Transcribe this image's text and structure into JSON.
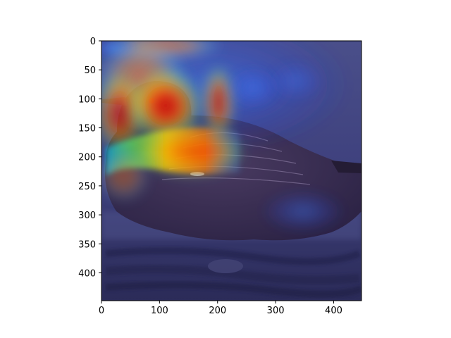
{
  "chart_data": {
    "type": "heatmap",
    "title": "",
    "xlabel": "",
    "ylabel": "",
    "xlim": [
      0,
      448
    ],
    "ylim": [
      448,
      0
    ],
    "grid": false,
    "xticks": [
      0,
      100,
      200,
      300,
      400
    ],
    "yticks": [
      0,
      50,
      100,
      150,
      200,
      250,
      300,
      350,
      400
    ],
    "colormap": "jet",
    "image_content": "loon bird on water with heatmap overlay",
    "hotspots": [
      {
        "x": 40,
        "y": 115,
        "intensity": 0.7
      },
      {
        "x": 105,
        "y": 140,
        "intensity": 0.95
      },
      {
        "x": 130,
        "y": 210,
        "intensity": 0.95
      },
      {
        "x": 200,
        "y": 200,
        "intensity": 0.85
      },
      {
        "x": 210,
        "y": 130,
        "intensity": 0.75
      },
      {
        "x": 110,
        "y": 60,
        "intensity": 0.65
      },
      {
        "x": 50,
        "y": 230,
        "intensity": 0.5
      }
    ]
  },
  "colors": {
    "background_dark": "#3a3a6e",
    "water_dark": "#2a2a55",
    "bird_body": "#3b2f4a",
    "hot": "#d01010",
    "warm": "#ffa000",
    "mid": "#7fff50",
    "cool": "#00c0ff"
  }
}
